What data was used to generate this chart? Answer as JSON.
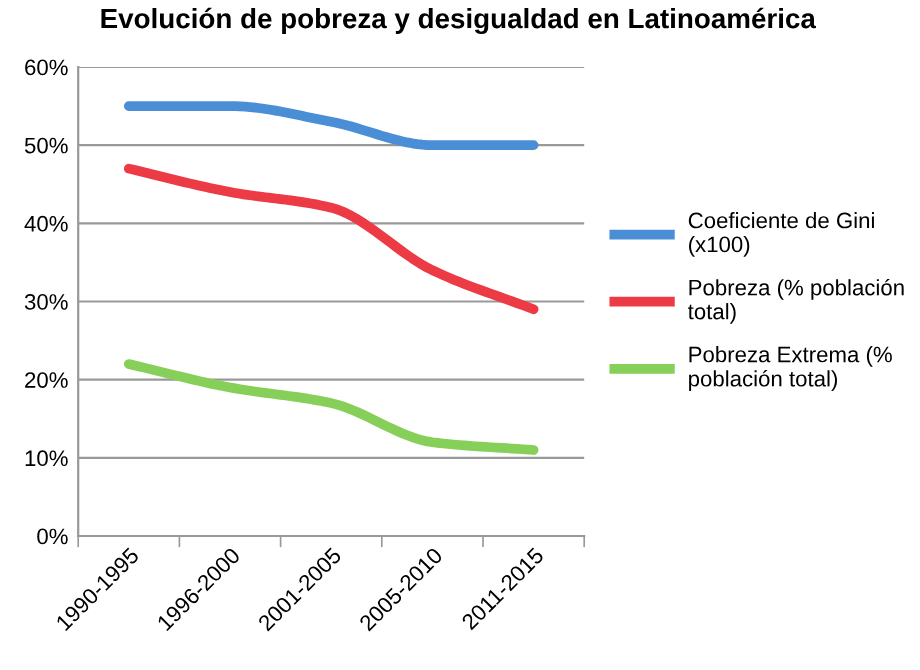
{
  "chart_data": {
    "type": "line",
    "title": "Evolución de pobreza y desigualdad en Latinoamérica",
    "categories": [
      "1990-1995",
      "1996-2000",
      "2001-2005",
      "2005-2010",
      "2011-2015"
    ],
    "series": [
      {
        "name": "Coeficiente de Gini (x100)",
        "color": "#4a8fd6",
        "values": [
          55,
          55,
          53,
          50,
          50
        ]
      },
      {
        "name": "Pobreza (% población total)",
        "color": "#ec3b45",
        "values": [
          47,
          44,
          42,
          34,
          29
        ]
      },
      {
        "name": "Pobreza Extrema (% población total)",
        "color": "#86d05a",
        "values": [
          22,
          19,
          17,
          12,
          11
        ]
      }
    ],
    "ylim": [
      0,
      60
    ],
    "yticks": [
      {
        "value": 0,
        "label": "0%"
      },
      {
        "value": 10,
        "label": "10%"
      },
      {
        "value": 20,
        "label": "20%"
      },
      {
        "value": 30,
        "label": "30%"
      },
      {
        "value": 40,
        "label": "40%"
      },
      {
        "value": 50,
        "label": "50%"
      },
      {
        "value": 60,
        "label": "60%"
      }
    ],
    "grid": "y",
    "legend": "right",
    "marker": "none",
    "line_style": "solid"
  }
}
